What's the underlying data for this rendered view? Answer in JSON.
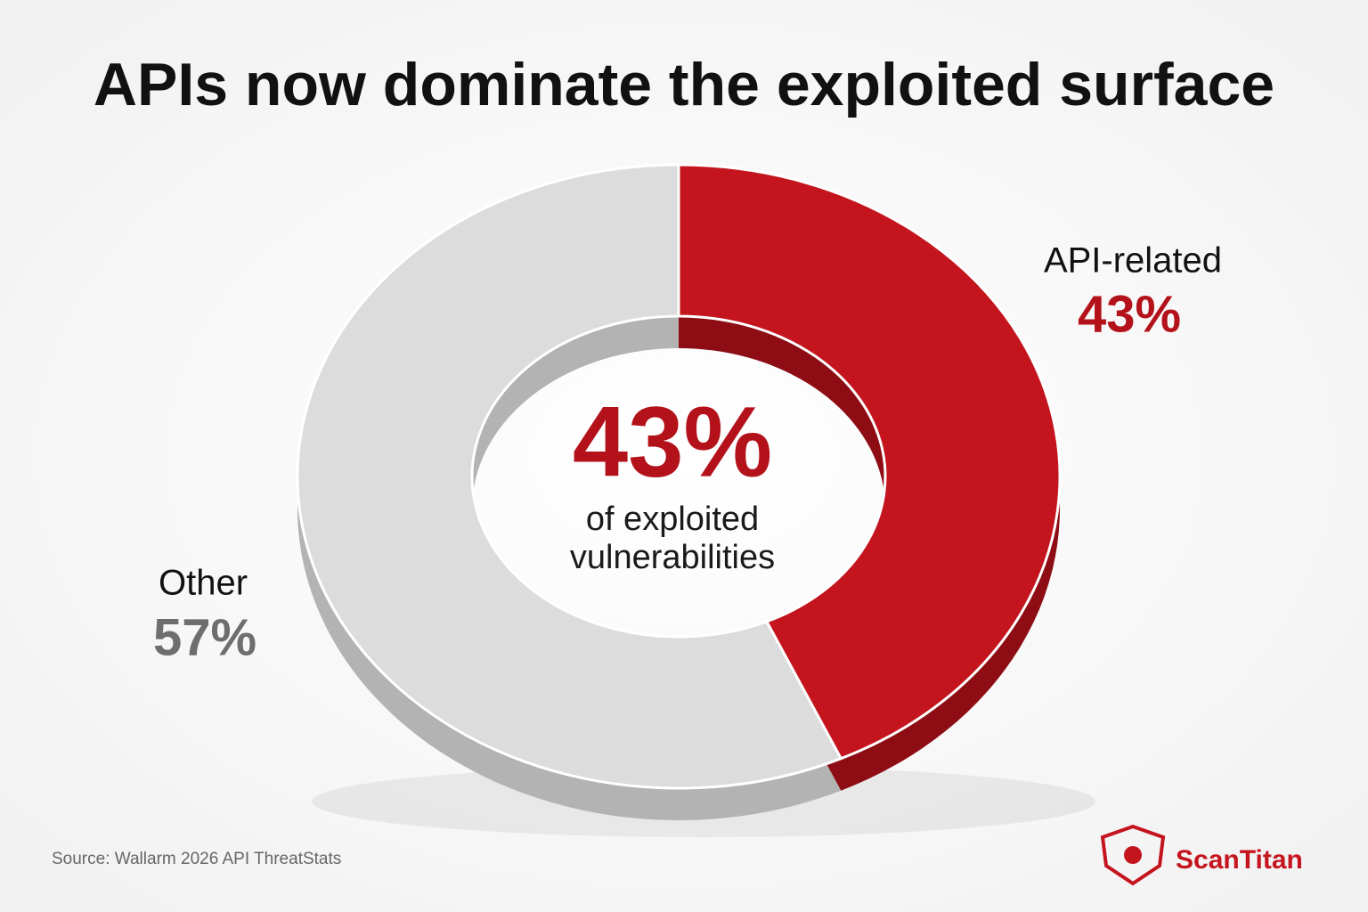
{
  "chart_data": {
    "type": "donut",
    "title": "APIs now dominate the exploited surface",
    "categories": [
      "API-related",
      "Other"
    ],
    "values": [
      43,
      57
    ],
    "value_labels": [
      "43%",
      "57%"
    ],
    "colors": [
      "#c4141e",
      "#dcdcdc"
    ],
    "label_colors": [
      "#b3121b",
      "#6e6e6e"
    ],
    "center_text": [
      "of exploited",
      "vulnerabilities"
    ],
    "source": "Source: Wallarm 2026 API ThreatStats",
    "brand": "ScanTitan"
  }
}
